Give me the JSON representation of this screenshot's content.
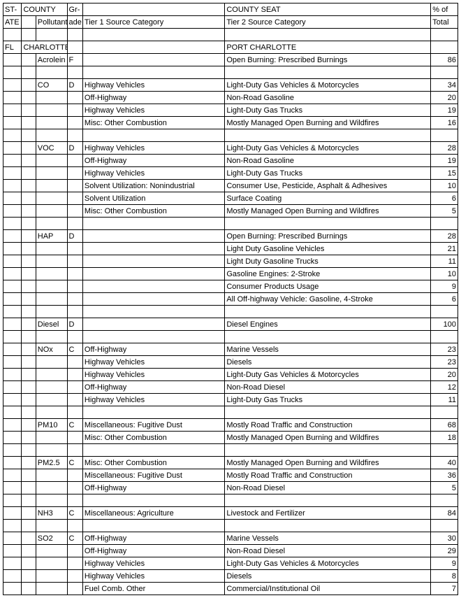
{
  "header": {
    "r1c1": "ST-",
    "r1c2": "COUNTY",
    "r1c4": "Gr-",
    "r1c6": "COUNTY SEAT",
    "r1c7": "% of",
    "r2c1": "ATE",
    "r2c3": "Pollutant",
    "r2c4": "ade",
    "r2c5": "Tier 1 Source Category",
    "r2c6": "Tier 2 Source Category",
    "r2c7": "Total"
  },
  "rows": [
    {
      "c1": "",
      "c2": "",
      "c3": "",
      "c4": "",
      "c5": "",
      "c6": "",
      "c7": ""
    },
    {
      "c1": "FL",
      "c2": "CHARLOTTE",
      "c3": "",
      "c4": "",
      "c5": "",
      "c6": "PORT CHARLOTTE",
      "c7": ""
    },
    {
      "c1": "",
      "c2": "",
      "c3": "Acrolein",
      "c4": "F",
      "c5": "",
      "c6": "Open Burning:  Prescribed Burnings",
      "c7": "86"
    },
    {
      "c1": "",
      "c2": "",
      "c3": "",
      "c4": "",
      "c5": "",
      "c6": "",
      "c7": ""
    },
    {
      "c1": "",
      "c2": "",
      "c3": "CO",
      "c4": "D",
      "c5": "Highway Vehicles",
      "c6": "Light-Duty Gas Vehicles & Motorcycles",
      "c7": "34"
    },
    {
      "c1": "",
      "c2": "",
      "c3": "",
      "c4": "",
      "c5": "Off-Highway",
      "c6": "Non-Road Gasoline",
      "c7": "20"
    },
    {
      "c1": "",
      "c2": "",
      "c3": "",
      "c4": "",
      "c5": "Highway Vehicles",
      "c6": "Light-Duty Gas Trucks",
      "c7": "19"
    },
    {
      "c1": "",
      "c2": "",
      "c3": "",
      "c4": "",
      "c5": "Misc: Other Combustion",
      "c6": "Mostly Managed Open Burning and Wildfires",
      "c7": "16"
    },
    {
      "c1": "",
      "c2": "",
      "c3": "",
      "c4": "",
      "c5": "",
      "c6": "",
      "c7": ""
    },
    {
      "c1": "",
      "c2": "",
      "c3": "VOC",
      "c4": "D",
      "c5": "Highway Vehicles",
      "c6": "Light-Duty Gas Vehicles & Motorcycles",
      "c7": "28"
    },
    {
      "c1": "",
      "c2": "",
      "c3": "",
      "c4": "",
      "c5": "Off-Highway",
      "c6": "Non-Road Gasoline",
      "c7": "19"
    },
    {
      "c1": "",
      "c2": "",
      "c3": "",
      "c4": "",
      "c5": "Highway Vehicles",
      "c6": "Light-Duty Gas Trucks",
      "c7": "15"
    },
    {
      "c1": "",
      "c2": "",
      "c3": "",
      "c4": "",
      "c5": "Solvent Utilization: Nonindustrial",
      "c6": "Consumer Use, Pesticide, Asphalt & Adhesives",
      "c7": "10"
    },
    {
      "c1": "",
      "c2": "",
      "c3": "",
      "c4": "",
      "c5": "Solvent Utilization",
      "c6": "Surface Coating",
      "c7": "6"
    },
    {
      "c1": "",
      "c2": "",
      "c3": "",
      "c4": "",
      "c5": "Misc: Other Combustion",
      "c6": "Mostly Managed Open Burning and Wildfires",
      "c7": "5"
    },
    {
      "c1": "",
      "c2": "",
      "c3": "",
      "c4": "",
      "c5": "",
      "c6": "",
      "c7": ""
    },
    {
      "c1": "",
      "c2": "",
      "c3": "HAP",
      "c4": "D",
      "c5": "",
      "c6": "Open Burning:  Prescribed Burnings",
      "c7": "28"
    },
    {
      "c1": "",
      "c2": "",
      "c3": "",
      "c4": "",
      "c5": "",
      "c6": "Light Duty Gasoline Vehicles",
      "c7": "21"
    },
    {
      "c1": "",
      "c2": "",
      "c3": "",
      "c4": "",
      "c5": "",
      "c6": "Light Duty Gasoline Trucks",
      "c7": "11"
    },
    {
      "c1": "",
      "c2": "",
      "c3": "",
      "c4": "",
      "c5": "",
      "c6": "Gasoline Engines: 2-Stroke",
      "c7": "10"
    },
    {
      "c1": "",
      "c2": "",
      "c3": "",
      "c4": "",
      "c5": "",
      "c6": "Consumer Products Usage",
      "c7": "9"
    },
    {
      "c1": "",
      "c2": "",
      "c3": "",
      "c4": "",
      "c5": "",
      "c6": "All Off-highway Vehicle: Gasoline, 4-Stroke",
      "c7": "6"
    },
    {
      "c1": "",
      "c2": "",
      "c3": "",
      "c4": "",
      "c5": "",
      "c6": "",
      "c7": ""
    },
    {
      "c1": "",
      "c2": "",
      "c3": "Diesel",
      "c4": "D",
      "c5": "",
      "c6": "Diesel Engines",
      "c7": "100"
    },
    {
      "c1": "",
      "c2": "",
      "c3": "",
      "c4": "",
      "c5": "",
      "c6": "",
      "c7": ""
    },
    {
      "c1": "",
      "c2": "",
      "c3": "NOx",
      "c4": "C",
      "c5": "Off-Highway",
      "c6": "Marine Vessels",
      "c7": "23"
    },
    {
      "c1": "",
      "c2": "",
      "c3": "",
      "c4": "",
      "c5": "Highway Vehicles",
      "c6": "Diesels",
      "c7": "23"
    },
    {
      "c1": "",
      "c2": "",
      "c3": "",
      "c4": "",
      "c5": "Highway Vehicles",
      "c6": "Light-Duty Gas Vehicles & Motorcycles",
      "c7": "20"
    },
    {
      "c1": "",
      "c2": "",
      "c3": "",
      "c4": "",
      "c5": "Off-Highway",
      "c6": "Non-Road Diesel",
      "c7": "12"
    },
    {
      "c1": "",
      "c2": "",
      "c3": "",
      "c4": "",
      "c5": "Highway Vehicles",
      "c6": "Light-Duty Gas Trucks",
      "c7": "11"
    },
    {
      "c1": "",
      "c2": "",
      "c3": "",
      "c4": "",
      "c5": "",
      "c6": "",
      "c7": ""
    },
    {
      "c1": "",
      "c2": "",
      "c3": "PM10",
      "c4": "C",
      "c5": "Miscellaneous: Fugitive Dust",
      "c6": "Mostly Road Traffic and Construction",
      "c7": "68"
    },
    {
      "c1": "",
      "c2": "",
      "c3": "",
      "c4": "",
      "c5": "Misc: Other Combustion",
      "c6": "Mostly Managed Open Burning and Wildfires",
      "c7": "18"
    },
    {
      "c1": "",
      "c2": "",
      "c3": "",
      "c4": "",
      "c5": "",
      "c6": "",
      "c7": ""
    },
    {
      "c1": "",
      "c2": "",
      "c3": "PM2.5",
      "c4": "C",
      "c5": "Misc: Other Combustion",
      "c6": "Mostly Managed Open Burning and Wildfires",
      "c7": "40"
    },
    {
      "c1": "",
      "c2": "",
      "c3": "",
      "c4": "",
      "c5": "Miscellaneous: Fugitive Dust",
      "c6": "Mostly Road Traffic and Construction",
      "c7": "36"
    },
    {
      "c1": "",
      "c2": "",
      "c3": "",
      "c4": "",
      "c5": "Off-Highway",
      "c6": "Non-Road Diesel",
      "c7": "5"
    },
    {
      "c1": "",
      "c2": "",
      "c3": "",
      "c4": "",
      "c5": "",
      "c6": "",
      "c7": ""
    },
    {
      "c1": "",
      "c2": "",
      "c3": "NH3",
      "c4": "C",
      "c5": "Miscellaneous: Agriculture",
      "c6": "Livestock and Fertilizer",
      "c7": "84"
    },
    {
      "c1": "",
      "c2": "",
      "c3": "",
      "c4": "",
      "c5": "",
      "c6": "",
      "c7": ""
    },
    {
      "c1": "",
      "c2": "",
      "c3": "SO2",
      "c4": "C",
      "c5": "Off-Highway",
      "c6": "Marine Vessels",
      "c7": "30"
    },
    {
      "c1": "",
      "c2": "",
      "c3": "",
      "c4": "",
      "c5": "Off-Highway",
      "c6": "Non-Road Diesel",
      "c7": "29"
    },
    {
      "c1": "",
      "c2": "",
      "c3": "",
      "c4": "",
      "c5": "Highway Vehicles",
      "c6": "Light-Duty Gas Vehicles & Motorcycles",
      "c7": "9"
    },
    {
      "c1": "",
      "c2": "",
      "c3": "",
      "c4": "",
      "c5": "Highway Vehicles",
      "c6": "Diesels",
      "c7": "8"
    },
    {
      "c1": "",
      "c2": "",
      "c3": "",
      "c4": "",
      "c5": "Fuel Comb. Other",
      "c6": "Commercial/Institutional Oil",
      "c7": "7"
    }
  ]
}
